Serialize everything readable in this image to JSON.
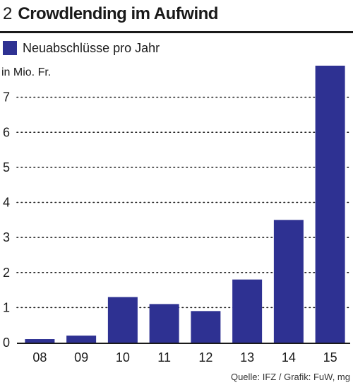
{
  "header": {
    "number": "2",
    "title": "Crowdlending im Aufwind"
  },
  "legend": {
    "label": "Neuabschlüsse pro Jahr",
    "color": "#2e3192"
  },
  "source": "Quelle: IFZ / Grafik: FuW, mg",
  "chart_data": {
    "type": "bar",
    "categories": [
      "08",
      "09",
      "10",
      "11",
      "12",
      "13",
      "14",
      "15"
    ],
    "series": [
      {
        "name": "Neuabschlüsse pro Jahr",
        "values": [
          0.1,
          0.2,
          1.3,
          1.1,
          0.9,
          1.8,
          3.5,
          7.9
        ]
      }
    ],
    "ylabel": "in Mio. Fr.",
    "ylim": [
      0,
      8
    ],
    "yticks": [
      0,
      1,
      2,
      3,
      4,
      5,
      6,
      7
    ],
    "grid": true,
    "bar_color": "#2e3192"
  }
}
